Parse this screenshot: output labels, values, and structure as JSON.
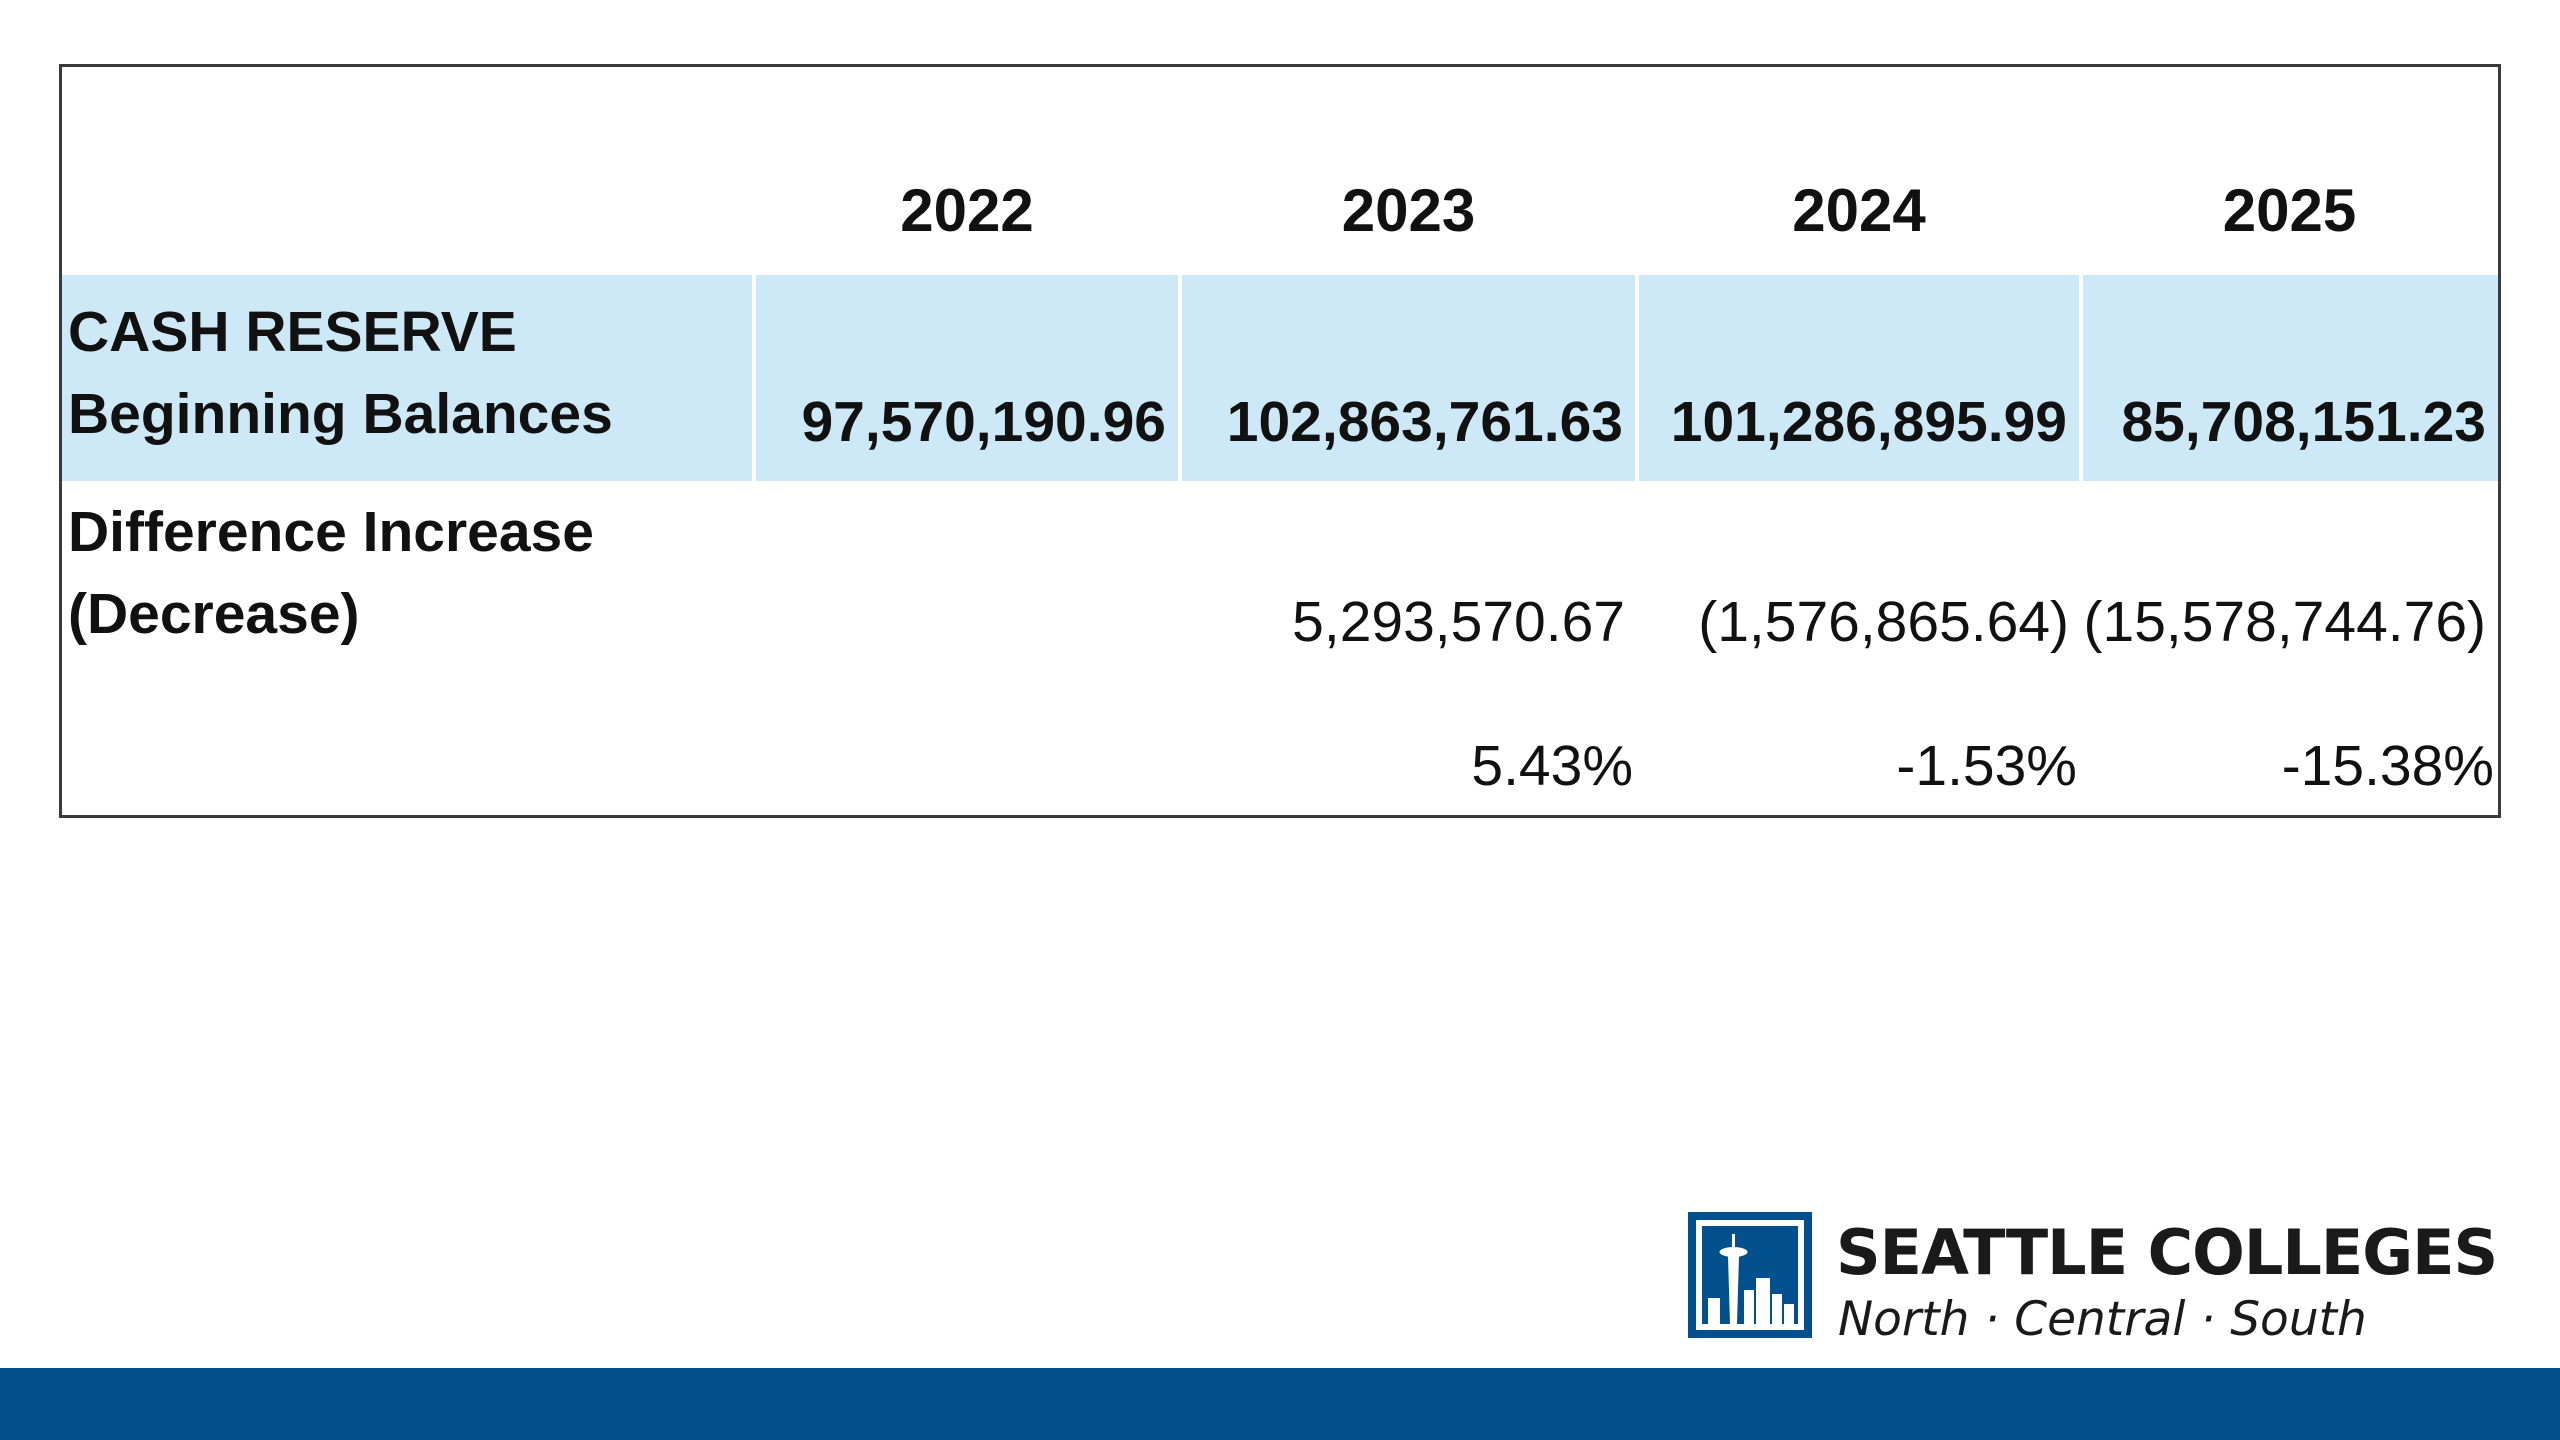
{
  "table": {
    "years": [
      "2022",
      "2023",
      "2024",
      "2025"
    ],
    "reserve": {
      "label_line1": "CASH RESERVE",
      "label_line2": "Beginning Balances",
      "values": [
        "97,570,190.96",
        "102,863,761.63",
        "101,286,895.99",
        "85,708,151.23"
      ]
    },
    "difference": {
      "label_line1": "Difference Increase",
      "label_line2": "(Decrease)",
      "values": [
        "",
        "5,293,570.67",
        "(1,576,865.64)",
        "(15,578,744.76)"
      ]
    },
    "percent_change": {
      "values": [
        "",
        "5.43%",
        "-1.53%",
        "-15.38%"
      ]
    }
  },
  "logo": {
    "title": "SEATTLE COLLEGES",
    "subtitle": "North · Central · South",
    "brand_color": "#02508e"
  },
  "colors": {
    "row_highlight": "#cde9f7",
    "footer_bar": "#02508e"
  }
}
